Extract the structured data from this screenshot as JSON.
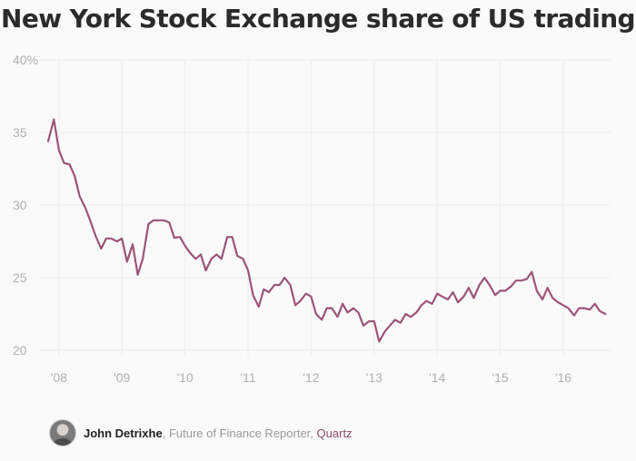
{
  "title": "New York Stock Exchange share of US trading",
  "footer": {
    "author": "John Detrixhe",
    "separator": ",",
    "role": "Future of Finance Reporter,",
    "publication": "Quartz",
    "avatar_icon": "author-avatar"
  },
  "colors": {
    "line": "#9c5478",
    "grid": "#ececec",
    "tick_text": "#b0b0b0"
  },
  "chart_data": {
    "type": "line",
    "title": "New York Stock Exchange share of US trading",
    "xlabel": "",
    "ylabel": "",
    "ylim": [
      20,
      40
    ],
    "yticks": [
      20,
      25,
      30,
      35,
      40
    ],
    "ytick_labels": [
      "20",
      "25",
      "30",
      "35",
      "40%"
    ],
    "xlim": [
      2007.7,
      2016.75
    ],
    "xticks": [
      2008,
      2009,
      2010,
      2011,
      2012,
      2013,
      2014,
      2015,
      2016
    ],
    "xtick_labels": [
      "'08",
      "'09",
      "'10",
      "'11",
      "'12",
      "'13",
      "'14",
      "'15",
      "'16"
    ],
    "grid": true,
    "series": [
      {
        "color": "#9c5478",
        "points": [
          [
            2007.83,
            34.4
          ],
          [
            2007.92,
            35.9
          ],
          [
            2008.0,
            33.8
          ],
          [
            2008.08,
            32.9
          ],
          [
            2008.17,
            32.8
          ],
          [
            2008.25,
            32.0
          ],
          [
            2008.33,
            30.6
          ],
          [
            2008.42,
            29.8
          ],
          [
            2008.5,
            28.9
          ],
          [
            2008.58,
            27.9
          ],
          [
            2008.67,
            27.0
          ],
          [
            2008.75,
            27.7
          ],
          [
            2008.83,
            27.7
          ],
          [
            2008.92,
            27.5
          ],
          [
            2009.0,
            27.7
          ],
          [
            2009.08,
            26.1
          ],
          [
            2009.17,
            27.3
          ],
          [
            2009.25,
            25.2
          ],
          [
            2009.33,
            26.3
          ],
          [
            2009.42,
            28.7
          ],
          [
            2009.5,
            28.95
          ],
          [
            2009.58,
            28.95
          ],
          [
            2009.67,
            28.95
          ],
          [
            2009.75,
            28.8
          ],
          [
            2009.83,
            27.75
          ],
          [
            2009.92,
            27.8
          ],
          [
            2010.0,
            27.2
          ],
          [
            2010.08,
            26.7
          ],
          [
            2010.17,
            26.3
          ],
          [
            2010.25,
            26.6
          ],
          [
            2010.33,
            25.5
          ],
          [
            2010.42,
            26.3
          ],
          [
            2010.5,
            26.6
          ],
          [
            2010.58,
            26.3
          ],
          [
            2010.67,
            27.8
          ],
          [
            2010.75,
            27.8
          ],
          [
            2010.83,
            26.5
          ],
          [
            2010.92,
            26.3
          ],
          [
            2011.0,
            25.5
          ],
          [
            2011.08,
            23.8
          ],
          [
            2011.17,
            23.0
          ],
          [
            2011.25,
            24.2
          ],
          [
            2011.33,
            24.0
          ],
          [
            2011.42,
            24.5
          ],
          [
            2011.5,
            24.5
          ],
          [
            2011.58,
            25.0
          ],
          [
            2011.67,
            24.5
          ],
          [
            2011.75,
            23.1
          ],
          [
            2011.83,
            23.4
          ],
          [
            2011.92,
            23.9
          ],
          [
            2012.0,
            23.7
          ],
          [
            2012.08,
            22.5
          ],
          [
            2012.17,
            22.1
          ],
          [
            2012.25,
            22.9
          ],
          [
            2012.33,
            22.9
          ],
          [
            2012.42,
            22.3
          ],
          [
            2012.5,
            23.2
          ],
          [
            2012.58,
            22.6
          ],
          [
            2012.67,
            22.9
          ],
          [
            2012.75,
            22.6
          ],
          [
            2012.83,
            21.7
          ],
          [
            2012.92,
            22.0
          ],
          [
            2013.0,
            22.0
          ],
          [
            2013.08,
            20.6
          ],
          [
            2013.17,
            21.3
          ],
          [
            2013.25,
            21.7
          ],
          [
            2013.33,
            22.1
          ],
          [
            2013.42,
            21.9
          ],
          [
            2013.5,
            22.5
          ],
          [
            2013.58,
            22.3
          ],
          [
            2013.67,
            22.6
          ],
          [
            2013.75,
            23.1
          ],
          [
            2013.83,
            23.4
          ],
          [
            2013.92,
            23.2
          ],
          [
            2014.0,
            23.9
          ],
          [
            2014.08,
            23.7
          ],
          [
            2014.17,
            23.5
          ],
          [
            2014.25,
            24.0
          ],
          [
            2014.33,
            23.3
          ],
          [
            2014.42,
            23.7
          ],
          [
            2014.5,
            24.3
          ],
          [
            2014.58,
            23.6
          ],
          [
            2014.67,
            24.5
          ],
          [
            2014.75,
            25.0
          ],
          [
            2014.83,
            24.5
          ],
          [
            2014.92,
            23.8
          ],
          [
            2015.0,
            24.1
          ],
          [
            2015.08,
            24.1
          ],
          [
            2015.17,
            24.4
          ],
          [
            2015.25,
            24.8
          ],
          [
            2015.33,
            24.8
          ],
          [
            2015.42,
            24.9
          ],
          [
            2015.5,
            25.4
          ],
          [
            2015.58,
            24.1
          ],
          [
            2015.67,
            23.5
          ],
          [
            2015.75,
            24.3
          ],
          [
            2015.83,
            23.6
          ],
          [
            2015.92,
            23.3
          ],
          [
            2016.0,
            23.1
          ],
          [
            2016.08,
            22.9
          ],
          [
            2016.17,
            22.4
          ],
          [
            2016.25,
            22.9
          ],
          [
            2016.33,
            22.9
          ],
          [
            2016.42,
            22.8
          ],
          [
            2016.5,
            23.2
          ],
          [
            2016.58,
            22.7
          ],
          [
            2016.67,
            22.5
          ]
        ]
      }
    ]
  }
}
